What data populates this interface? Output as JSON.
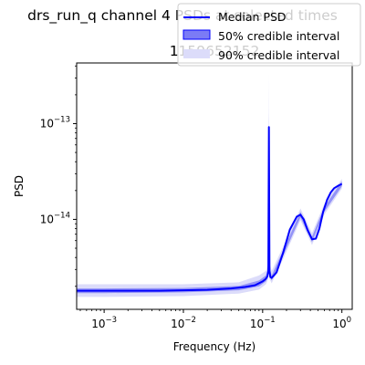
{
  "figure": {
    "title": "drs_run_q channel 4 PSDs at selected times",
    "subtitle": "1159652152"
  },
  "colors": {
    "median": "#0000ff",
    "band50": "#7b7bf5",
    "band90": "#dcdcfa",
    "axes": "#000000"
  },
  "chart_data": {
    "type": "line",
    "title": "drs_run_q channel 4 PSDs at selected times",
    "subtitle": "1159652152",
    "xlabel": "Frequency (Hz)",
    "ylabel": "PSD",
    "xscale": "log",
    "yscale": "log",
    "xlim": [
      0.00045,
      1.35
    ],
    "ylim": [
      1.15e-15,
      4.3e-13
    ],
    "grid": false,
    "legend_position": "top-right",
    "x_ticks": [
      {
        "value": 0.001,
        "base": "10",
        "exp": "−3"
      },
      {
        "value": 0.01,
        "base": "10",
        "exp": "−2"
      },
      {
        "value": 0.1,
        "base": "10",
        "exp": "−1"
      },
      {
        "value": 1,
        "base": "10",
        "exp": "0"
      }
    ],
    "y_ticks": [
      {
        "value": 1e-14,
        "base": "10",
        "exp": "−14"
      },
      {
        "value": 1e-13,
        "base": "10",
        "exp": "−13"
      }
    ],
    "series": [
      {
        "name": "Median PSD",
        "kind": "line",
        "x": [
          0.00045,
          0.001,
          0.002,
          0.005,
          0.01,
          0.02,
          0.04,
          0.06,
          0.08,
          0.1,
          0.11,
          0.115,
          0.118,
          0.12,
          0.122,
          0.125,
          0.13,
          0.15,
          0.18,
          0.22,
          0.27,
          0.3,
          0.33,
          0.37,
          0.42,
          0.47,
          0.52,
          0.58,
          0.65,
          0.72,
          0.8,
          0.9,
          1.0
        ],
        "y": [
          1.8e-15,
          1.8e-15,
          1.8e-15,
          1.8e-15,
          1.82e-15,
          1.84e-15,
          1.9e-15,
          1.97e-15,
          2.05e-15,
          2.25e-15,
          2.4e-15,
          2.55e-15,
          2.9e-15,
          9.2e-14,
          2.9e-15,
          2.5e-15,
          2.45e-15,
          2.8e-15,
          4.4e-15,
          7.8e-15,
          1.07e-14,
          1.12e-14,
          1e-14,
          7.7e-15,
          6.2e-15,
          6.3e-15,
          8e-15,
          1.2e-14,
          1.6e-14,
          1.9e-14,
          2.12e-14,
          2.25e-14,
          2.35e-14
        ]
      },
      {
        "name": "50% credible interval",
        "kind": "band",
        "x": [
          0.00045,
          0.001,
          0.01,
          0.05,
          0.09,
          0.11,
          0.118,
          0.12,
          0.122,
          0.13,
          0.18,
          0.3,
          0.42,
          0.6,
          1.0
        ],
        "lower": [
          1.7e-15,
          1.7e-15,
          1.73e-15,
          1.82e-15,
          2e-15,
          2.25e-15,
          2.6e-15,
          6e-14,
          2.6e-15,
          2.3e-15,
          4.1e-15,
          1.05e-14,
          5.8e-15,
          1.2e-14,
          2.22e-14
        ],
        "upper": [
          1.9e-15,
          1.9e-15,
          1.92e-15,
          2.02e-15,
          2.3e-15,
          2.6e-15,
          3.2e-15,
          1.3e-13,
          3.2e-15,
          2.6e-15,
          4.7e-15,
          1.2e-14,
          6.6e-15,
          1.35e-14,
          2.5e-14
        ]
      },
      {
        "name": "90% credible interval",
        "kind": "band",
        "x": [
          0.00045,
          0.001,
          0.01,
          0.05,
          0.09,
          0.11,
          0.118,
          0.12,
          0.122,
          0.13,
          0.18,
          0.3,
          0.42,
          0.6,
          1.0
        ],
        "lower": [
          1.55e-15,
          1.55e-15,
          1.58e-15,
          1.68e-15,
          1.85e-15,
          2.1e-15,
          2.4e-15,
          3e-14,
          2.4e-15,
          2.15e-15,
          3.8e-15,
          9.8e-15,
          5.4e-15,
          1.12e-14,
          2.1e-14
        ],
        "upper": [
          2.1e-15,
          2.1e-15,
          2.1e-15,
          2.2e-15,
          2.6e-15,
          2.9e-15,
          3.5e-15,
          3.4e-13,
          3.5e-15,
          2.9e-15,
          5.1e-15,
          1.3e-14,
          7.2e-15,
          1.45e-14,
          2.65e-14
        ]
      }
    ]
  },
  "legend": {
    "position": "top-right",
    "items": [
      {
        "label": "Median PSD",
        "kind": "line"
      },
      {
        "label": "50% credible interval",
        "kind": "band50"
      },
      {
        "label": "90% credible interval",
        "kind": "band90"
      }
    ]
  }
}
